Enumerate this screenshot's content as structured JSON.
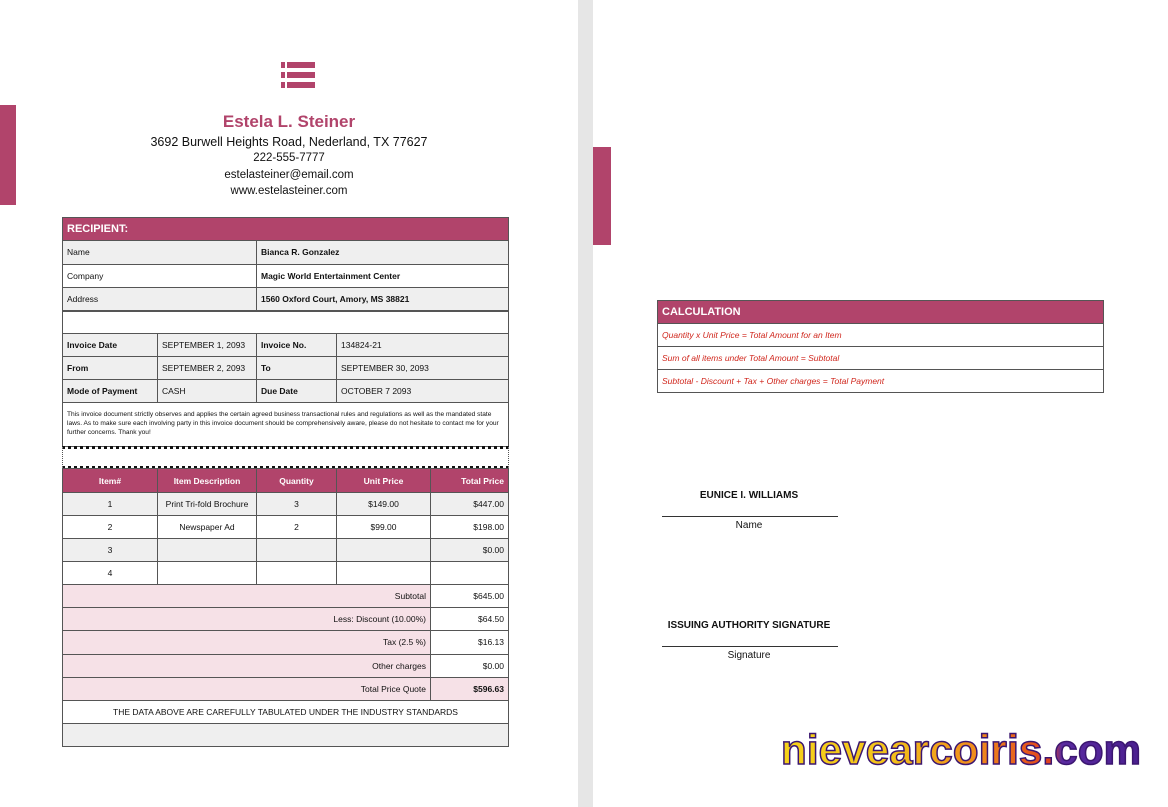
{
  "header": {
    "name": "Estela L. Steiner",
    "address": "3692 Burwell Heights Road, Nederland, TX 77627",
    "phone": "222-555-7777",
    "email": "estelasteiner@email.com",
    "website": "www.estelasteiner.com"
  },
  "recipient": {
    "title": "RECIPIENT:",
    "rows": [
      [
        "Name",
        "Bianca R. Gonzalez"
      ],
      [
        "Company",
        "Magic World Entertainment Center"
      ],
      [
        "Address",
        "1560 Oxford Court, Amory, MS 38821"
      ]
    ]
  },
  "invoice": {
    "rows": [
      [
        "Invoice Date",
        "SEPTEMBER 1, 2093",
        "Invoice No.",
        "134824-21"
      ],
      [
        "From",
        "SEPTEMBER 2, 2093",
        "To",
        "SEPTEMBER 30, 2093"
      ],
      [
        "Mode of Payment",
        "CASH",
        "Due Date",
        "OCTOBER 7 2093"
      ]
    ]
  },
  "note": "This invoice document strictly observes and applies the certain agreed business transactional rules and regulations as well as the mandated state laws. As to make sure each involving party in this invoice document should be comprehensively aware, please do not hesitate to contact me for your further concerns. Thank you!",
  "items": {
    "columns": [
      "Item#",
      "Item Description",
      "Quantity",
      "Unit Price",
      "Total Price"
    ],
    "rows": [
      [
        "1",
        "Print Tri-fold Brochure",
        "3",
        "$149.00",
        "$447.00"
      ],
      [
        "2",
        "Newspaper Ad",
        "2",
        "$99.00",
        "$198.00"
      ],
      [
        "3",
        null,
        null,
        null,
        "$0.00"
      ],
      [
        "4",
        null,
        null,
        null,
        null
      ]
    ]
  },
  "summary": {
    "rows": [
      [
        "Subtotal",
        "$645.00"
      ],
      [
        "Less: Discount (10.00%)",
        "$64.50"
      ],
      [
        "Tax (2.5 %)",
        "$16.13"
      ],
      [
        "Other charges",
        "$0.00"
      ],
      [
        "Total Price Quote",
        "$596.63"
      ]
    ]
  },
  "footer": "THE DATA ABOVE ARE CAREFULLY TABULATED UNDER THE INDUSTRY STANDARDS",
  "calculation": {
    "title": "CALCULATION",
    "lines": [
      "Quantity x Unit Price = Total Amount for an Item",
      "Sum of all items under Total Amount = Subtotal",
      "Subtotal - Discount + Tax + Other charges = Total Payment"
    ]
  },
  "signatures": [
    {
      "name": "EUNICE I. WILLIAMS",
      "caption": "Name"
    },
    {
      "name": "ISSUING AUTHORITY SIGNATURE",
      "caption": "Signature"
    }
  ],
  "watermark": "nievearcoiris.com"
}
